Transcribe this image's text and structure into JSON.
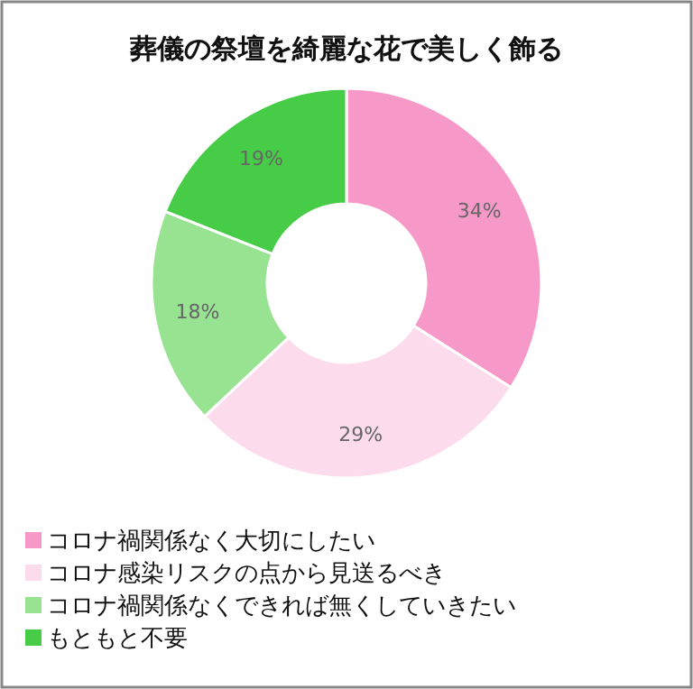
{
  "chart_data": {
    "type": "donut",
    "title": "葬儀の祭壇を綺麗な花で美しく飾る",
    "categories": [
      "コロナ禍関係なく大切にしたい",
      "コロナ感染リスクの点から見送るべき",
      "コロナ禍関係なくできれば無くしていきたい",
      "もともと不要"
    ],
    "values": [
      34,
      29,
      18,
      19
    ],
    "value_labels": [
      "34%",
      "29%",
      "18%",
      "19%"
    ],
    "colors": [
      "#f799c8",
      "#fcdcec",
      "#98e391",
      "#46cc46"
    ],
    "legend": "bottom left"
  }
}
